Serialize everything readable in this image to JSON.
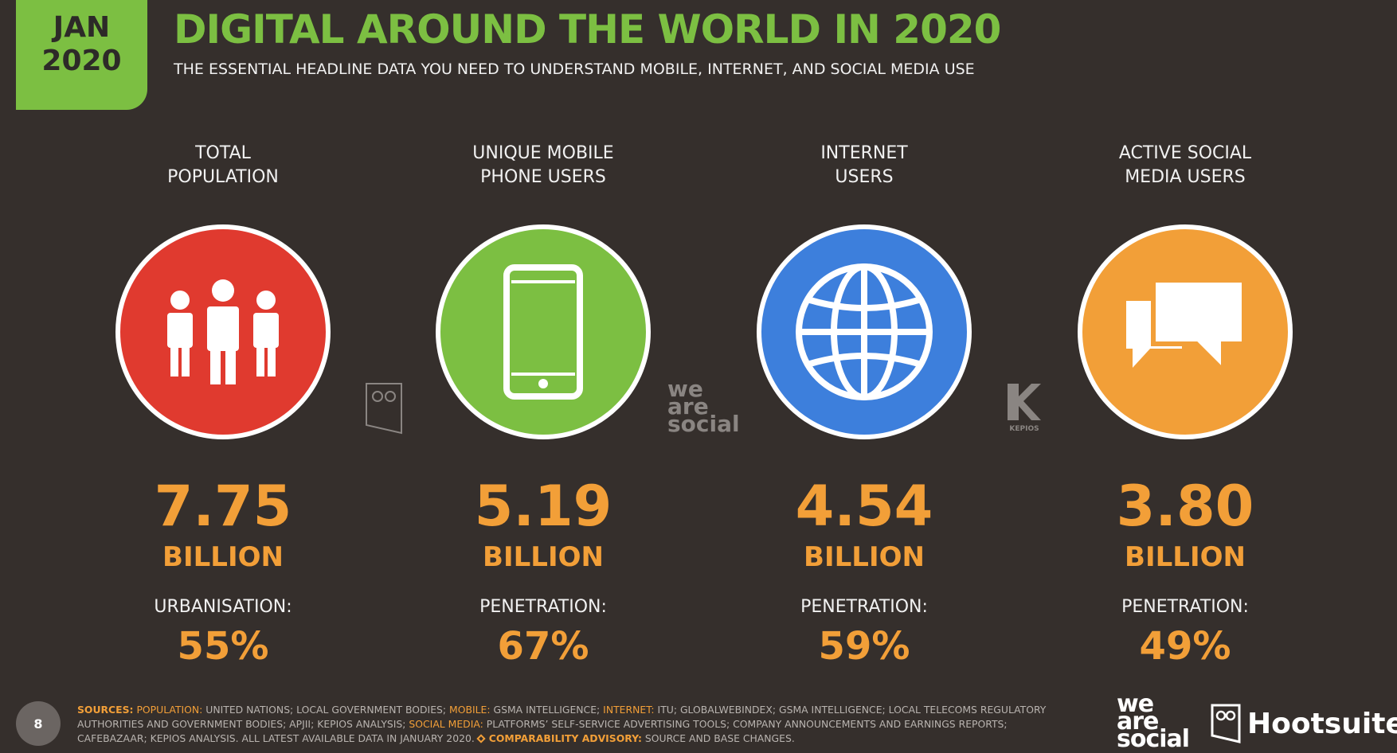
{
  "badge": {
    "line1": "JAN",
    "line2": "2020"
  },
  "header": {
    "title": "DIGITAL AROUND THE WORLD IN 2020",
    "subtitle": "THE ESSENTIAL HEADLINE DATA YOU NEED TO UNDERSTAND MOBILE, INTERNET, AND SOCIAL MEDIA USE"
  },
  "cards": [
    {
      "label_lines": [
        "TOTAL",
        "POPULATION"
      ],
      "color": "#e03a2f",
      "value": "7.75",
      "unit": "BILLION",
      "sub_label": "URBANISATION:",
      "sub_value": "55%"
    },
    {
      "label_lines": [
        "UNIQUE MOBILE",
        "PHONE USERS"
      ],
      "color": "#7cbf42",
      "value": "5.19",
      "unit": "BILLION",
      "sub_label": "PENETRATION:",
      "sub_value": "67%"
    },
    {
      "label_lines": [
        "INTERNET",
        "USERS"
      ],
      "color": "#3d7fdc",
      "value": "4.54",
      "unit": "BILLION",
      "sub_label": "PENETRATION:",
      "sub_value": "59%"
    },
    {
      "label_lines": [
        "ACTIVE SOCIAL",
        "MEDIA USERS"
      ],
      "color": "#f29f38",
      "value": "3.80",
      "unit": "BILLION",
      "sub_label": "PENETRATION:",
      "sub_value": "49%"
    }
  ],
  "watermarks": {
    "we_are_social": [
      "we",
      "are",
      "social"
    ],
    "kepios": "KEPIOS"
  },
  "footer": {
    "page": "8",
    "sources_heading": "SOURCES:",
    "sources": [
      {
        "key": "POPULATION:",
        "text": "UNITED NATIONS; LOCAL GOVERNMENT BODIES;"
      },
      {
        "key": "MOBILE:",
        "text": "GSMA INTELLIGENCE;"
      },
      {
        "key": "INTERNET:",
        "text": "ITU; GLOBALWEBINDEX; GSMA INTELLIGENCE; LOCAL TELECOMS REGULATORY AUTHORITIES AND GOVERNMENT BODIES; APJII; KEPIOS ANALYSIS;"
      },
      {
        "key": "SOCIAL MEDIA:",
        "text": "PLATFORMS’ SELF-SERVICE ADVERTISING TOOLS; COMPANY ANNOUNCEMENTS AND EARNINGS REPORTS; CAFEBAZAAR; KEPIOS ANALYSIS. ALL LATEST AVAILABLE DATA IN JANUARY 2020."
      }
    ],
    "advisory": {
      "key": "COMPARABILITY ADVISORY:",
      "text": "SOURCE AND BASE CHANGES."
    }
  },
  "logos": {
    "we_are_social": [
      "we",
      "are",
      "social"
    ],
    "hootsuite": "Hootsuite"
  }
}
